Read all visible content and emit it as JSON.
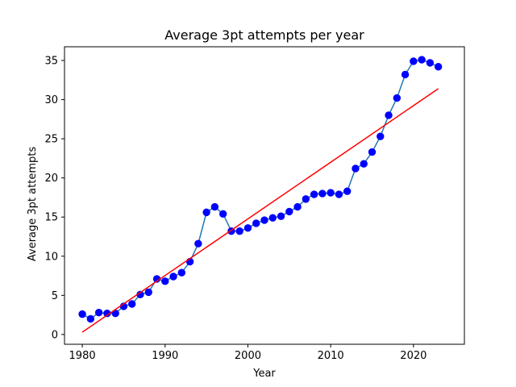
{
  "chart_data": {
    "type": "scatter",
    "title": "Average 3pt attempts per year",
    "xlabel": "Year",
    "ylabel": "Average 3pt attempts",
    "xlim": [
      1977.85,
      2026.15
    ],
    "ylim": [
      -1.25,
      36.75
    ],
    "x_ticks": [
      1980,
      1990,
      2000,
      2010,
      2020
    ],
    "y_ticks": [
      0,
      5,
      10,
      15,
      20,
      25,
      30,
      35
    ],
    "grid": false,
    "series": [
      {
        "type": "line+scatter",
        "line_color": "#1f77b4",
        "marker_color": "#0000ff",
        "x": [
          1980,
          1981,
          1982,
          1983,
          1984,
          1985,
          1986,
          1987,
          1988,
          1989,
          1990,
          1991,
          1992,
          1993,
          1994,
          1995,
          1996,
          1997,
          1998,
          1999,
          2000,
          2001,
          2002,
          2003,
          2004,
          2005,
          2006,
          2007,
          2008,
          2009,
          2010,
          2011,
          2012,
          2013,
          2014,
          2015,
          2016,
          2017,
          2018,
          2019,
          2020,
          2021,
          2022,
          2023
        ],
        "y": [
          2.6,
          2.0,
          2.8,
          2.7,
          2.7,
          3.6,
          3.9,
          5.1,
          5.4,
          7.1,
          6.8,
          7.4,
          7.9,
          9.3,
          11.6,
          15.6,
          16.3,
          15.4,
          13.2,
          13.2,
          13.6,
          14.2,
          14.6,
          14.9,
          15.1,
          15.7,
          16.3,
          17.3,
          17.9,
          18.0,
          18.1,
          17.9,
          18.3,
          21.2,
          21.8,
          23.3,
          25.3,
          28.0,
          30.2,
          33.2,
          34.9,
          35.1,
          34.7,
          34.2
        ]
      },
      {
        "type": "line",
        "color": "#ff0000",
        "x": [
          1980,
          2023
        ],
        "y": [
          0.3,
          31.4
        ]
      }
    ]
  }
}
